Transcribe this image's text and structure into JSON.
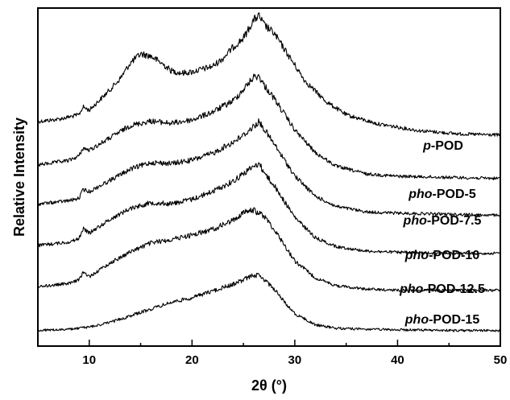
{
  "chart_data": {
    "type": "line",
    "xlabel": "2θ (°)",
    "ylabel": "Relative Intensity",
    "xlim": [
      5,
      50
    ],
    "xticks": [
      "10",
      "20",
      "30",
      "40",
      "50"
    ],
    "y_ticks_labeled": false,
    "grid": false,
    "legend": "none (labels beside curves)",
    "line_color": "#000000",
    "series": [
      {
        "prefix": "p",
        "suffix": "-POD",
        "x": [
          5,
          7,
          9,
          9.4,
          10,
          12,
          13,
          14,
          15,
          16,
          17,
          18,
          19,
          20,
          22,
          23,
          24,
          25,
          26,
          26.5,
          27,
          28,
          29,
          30,
          31,
          33,
          35,
          38,
          42,
          46,
          50
        ],
        "values": [
          0.15,
          0.16,
          0.18,
          0.215,
          0.2,
          0.29,
          0.34,
          0.41,
          0.45,
          0.44,
          0.41,
          0.375,
          0.365,
          0.37,
          0.395,
          0.43,
          0.48,
          0.52,
          0.6,
          0.62,
          0.58,
          0.54,
          0.47,
          0.4,
          0.33,
          0.24,
          0.18,
          0.14,
          0.11,
          0.095,
          0.09
        ]
      },
      {
        "prefix": "pho",
        "suffix": "-POD-5",
        "x": [
          5,
          8,
          9,
          9.4,
          10,
          12,
          14,
          16,
          18,
          20,
          22,
          24,
          25,
          26,
          26.5,
          27,
          28,
          29,
          30,
          32,
          34,
          37,
          40,
          45,
          50
        ],
        "values": [
          0.125,
          0.145,
          0.165,
          0.2,
          0.19,
          0.245,
          0.3,
          0.32,
          0.31,
          0.325,
          0.36,
          0.41,
          0.46,
          0.515,
          0.52,
          0.48,
          0.42,
          0.35,
          0.28,
          0.18,
          0.12,
          0.085,
          0.075,
          0.07,
          0.065
        ]
      },
      {
        "prefix": "pho",
        "suffix": "-POD-7.5",
        "x": [
          5,
          8,
          9,
          9.4,
          10,
          12,
          14,
          16,
          18,
          20,
          22,
          24,
          25,
          26,
          26.5,
          27,
          28,
          29,
          30,
          32,
          34,
          37,
          40,
          45,
          50
        ],
        "values": [
          0.105,
          0.12,
          0.13,
          0.17,
          0.16,
          0.21,
          0.26,
          0.29,
          0.285,
          0.3,
          0.33,
          0.38,
          0.41,
          0.45,
          0.47,
          0.44,
          0.37,
          0.3,
          0.23,
          0.14,
          0.095,
          0.07,
          0.065,
          0.06,
          0.055
        ]
      },
      {
        "prefix": "pho",
        "suffix": "-POD-10",
        "x": [
          5,
          8,
          9,
          9.4,
          10,
          12,
          14,
          16,
          18,
          20,
          22,
          24,
          25,
          26,
          26.5,
          27,
          28,
          29,
          30,
          32,
          34,
          37,
          40,
          45,
          50
        ],
        "values": [
          0.075,
          0.09,
          0.105,
          0.15,
          0.13,
          0.19,
          0.24,
          0.265,
          0.26,
          0.28,
          0.315,
          0.36,
          0.395,
          0.425,
          0.44,
          0.4,
          0.34,
          0.27,
          0.2,
          0.11,
          0.07,
          0.05,
          0.045,
          0.04,
          0.04
        ]
      },
      {
        "prefix": "pho",
        "suffix": "-POD-12.5",
        "x": [
          5,
          8,
          9,
          9.4,
          10,
          12,
          14,
          16,
          18,
          20,
          22,
          24,
          25,
          26,
          27,
          28,
          29,
          30,
          32,
          34,
          37,
          40,
          45,
          50
        ],
        "values": [
          0.045,
          0.06,
          0.075,
          0.11,
          0.09,
          0.15,
          0.2,
          0.24,
          0.255,
          0.275,
          0.3,
          0.34,
          0.375,
          0.385,
          0.36,
          0.3,
          0.23,
          0.16,
          0.085,
          0.05,
          0.035,
          0.03,
          0.03,
          0.03
        ]
      },
      {
        "prefix": "pho",
        "suffix": "-POD-15",
        "x": [
          5,
          8,
          10,
          12,
          14,
          16,
          18,
          20,
          22,
          24,
          25,
          26,
          26.5,
          27,
          28,
          29,
          30,
          32,
          34,
          37,
          40,
          45,
          50
        ],
        "values": [
          0.005,
          0.01,
          0.02,
          0.04,
          0.07,
          0.1,
          0.13,
          0.15,
          0.18,
          0.21,
          0.23,
          0.25,
          0.25,
          0.23,
          0.19,
          0.13,
          0.08,
          0.03,
          0.015,
          0.01,
          0.008,
          0.005,
          0.005
        ]
      }
    ]
  }
}
